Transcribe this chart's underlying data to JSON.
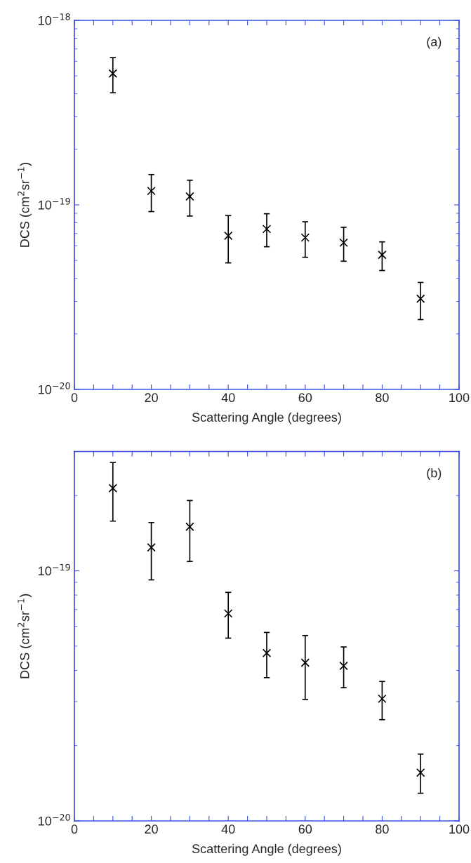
{
  "chart_data": [
    {
      "type": "scatter",
      "xlabel": "Scattering Angle (degrees)",
      "ylabel": "DCS (cm$^{2}$sr$^{−1}$)",
      "annotations": [
        "(a)"
      ],
      "log": "y",
      "marker": "cross",
      "grid": false,
      "x": [
        10,
        20,
        30,
        40,
        50,
        60,
        70,
        80,
        90
      ],
      "series": [
        {
          "color": "#000000",
          "values": [
            5.15e-19,
            1.19e-19,
            1.11e-19,
            6.8e-20,
            7.4e-20,
            6.65e-20,
            6.24e-20,
            5.36e-20,
            3.1e-20
          ],
          "errors": [
            [
              4.05e-19,
              6.28e-19
            ],
            [
              9.2e-20,
              1.46e-19
            ],
            [
              8.7e-20,
              1.36e-19
            ],
            [
              4.85e-20,
              8.75e-20
            ],
            [
              5.93e-20,
              8.95e-20
            ],
            [
              5.2e-20,
              8.1e-20
            ],
            [
              4.95e-20,
              7.56e-20
            ],
            [
              4.41e-20,
              6.3e-20
            ],
            [
              2.39e-20,
              3.8e-20
            ]
          ]
        }
      ],
      "xlim": [
        0,
        100
      ],
      "xticks": [
        0,
        {
          "value": 5,
          "label": null
        },
        {
          "value": 10,
          "label": null
        },
        {
          "value": 15,
          "label": null
        },
        20,
        {
          "value": 25,
          "label": null
        },
        {
          "value": 30,
          "label": null
        },
        {
          "value": 35,
          "label": null
        },
        40,
        {
          "value": 45,
          "label": null
        },
        {
          "value": 50,
          "label": null
        },
        {
          "value": 55,
          "label": null
        },
        60,
        {
          "value": 65,
          "label": null
        },
        {
          "value": 70,
          "label": null
        },
        {
          "value": 75,
          "label": null
        },
        80,
        {
          "value": 85,
          "label": null
        },
        {
          "value": 90,
          "label": null
        },
        {
          "value": 95,
          "label": null
        },
        100
      ],
      "ylim": [
        1e-20,
        1e-18
      ],
      "yticks": [
        {
          "value": 1e-20,
          "label": "10$^{−20}$"
        },
        {
          "value": 1e-19,
          "label": "10$^{−19}$"
        },
        {
          "value": 1e-18,
          "label": "10$^{−18}$"
        }
      ]
    },
    {
      "type": "scatter",
      "xlabel": "Scattering Angle (degrees)",
      "ylabel": "DCS (cm$^{2}$sr$^{−1}$)",
      "annotations": [
        "(b)"
      ],
      "log": "y",
      "marker": "cross",
      "grid": false,
      "x": [
        10,
        20,
        30,
        40,
        50,
        60,
        70,
        80,
        90
      ],
      "series": [
        {
          "color": "#000000",
          "values": [
            2.14e-19,
            1.24e-19,
            1.5e-19,
            6.75e-20,
            4.69e-20,
            4.29e-20,
            4.17e-20,
            3.08e-20,
            1.56e-20
          ],
          "errors": [
            [
              1.58e-19,
              2.71e-19
            ],
            [
              9.2e-20,
              1.56e-19
            ],
            [
              1.09e-19,
              1.91e-19
            ],
            [
              5.38e-20,
              8.2e-20
            ],
            [
              3.74e-20,
              5.67e-20
            ],
            [
              3.06e-20,
              5.51e-20
            ],
            [
              3.41e-20,
              4.96e-20
            ],
            [
              2.54e-20,
              3.61e-20
            ],
            [
              1.29e-20,
              1.85e-20
            ]
          ]
        }
      ],
      "xlim": [
        0,
        100
      ],
      "xticks": [
        0,
        {
          "value": 5,
          "label": null
        },
        {
          "value": 10,
          "label": null
        },
        {
          "value": 15,
          "label": null
        },
        20,
        {
          "value": 25,
          "label": null
        },
        {
          "value": 30,
          "label": null
        },
        {
          "value": 35,
          "label": null
        },
        40,
        {
          "value": 45,
          "label": null
        },
        {
          "value": 50,
          "label": null
        },
        {
          "value": 55,
          "label": null
        },
        60,
        {
          "value": 65,
          "label": null
        },
        {
          "value": 70,
          "label": null
        },
        {
          "value": 75,
          "label": null
        },
        80,
        {
          "value": 85,
          "label": null
        },
        {
          "value": 90,
          "label": null
        },
        {
          "value": 95,
          "label": null
        },
        100
      ],
      "ylim": [
        1e-20,
        3e-19
      ],
      "yticks": [
        {
          "value": 1e-20,
          "label": "10$^{−20}$"
        },
        {
          "value": 1e-19,
          "label": "10$^{−19}$"
        }
      ]
    }
  ]
}
